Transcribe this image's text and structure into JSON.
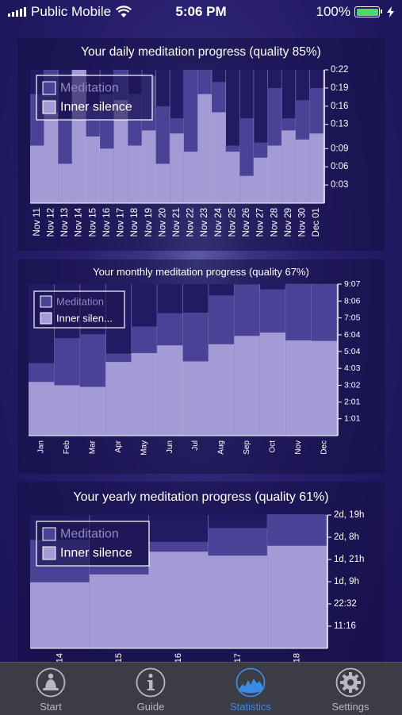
{
  "status_bar": {
    "carrier": "Public Mobile",
    "time": "5:06 PM",
    "battery": "100%",
    "battery_level": 1.0,
    "icons": [
      "signal-icon",
      "wifi-icon",
      "battery-icon",
      "charging-bolt-icon"
    ]
  },
  "colors": {
    "meditation": "#4a4296",
    "inner_silence": "#a39ad6",
    "panel": "#1c1650",
    "tab_active": "#3b8ae6",
    "tab_inactive": "#b8b8c0"
  },
  "chart_data": [
    {
      "type": "bar",
      "title": "Your daily meditation progress (quality 85%)",
      "legend": [
        "Meditation",
        "Inner silence"
      ],
      "legend_position": "top-left",
      "y_axis_side": "right",
      "categories": [
        "Nov 11",
        "Nov 12",
        "Nov 13",
        "Nov 14",
        "Nov 15",
        "Nov 16",
        "Nov 17",
        "Nov 18",
        "Nov 19",
        "Nov 20",
        "Nov 21",
        "Nov 22",
        "Nov 23",
        "Nov 24",
        "Nov 25",
        "Nov 26",
        "Nov 27",
        "Nov 28",
        "Nov 29",
        "Nov 30",
        "Dec 01"
      ],
      "y_ticks": [
        "0:03",
        "0:06",
        "0:09",
        "0:13",
        "0:16",
        "0:19",
        "0:22"
      ],
      "y_tick_values": [
        3,
        6,
        9,
        13,
        16,
        19,
        22
      ],
      "ylim": [
        0,
        22
      ],
      "y_unit": "minutes",
      "series": [
        {
          "name": "Meditation",
          "values": [
            18,
            22,
            14,
            20,
            16,
            18,
            22,
            18,
            21,
            16,
            14,
            22,
            22,
            20,
            9.5,
            14,
            10,
            19,
            14,
            17,
            19
          ]
        },
        {
          "name": "Inner silence",
          "values": [
            9.5,
            15,
            6.5,
            22,
            11,
            9,
            17,
            9.5,
            12,
            6.5,
            11.5,
            8.5,
            18,
            15,
            8.5,
            4.5,
            7.5,
            9.5,
            12,
            10.5,
            11.5
          ]
        }
      ]
    },
    {
      "type": "bar",
      "title": "Your monthly meditation progress (quality 67%)",
      "legend": [
        "Meditation",
        "Inner silen..."
      ],
      "legend_position": "top-left",
      "y_axis_side": "right",
      "categories": [
        "Jan",
        "Feb",
        "Mar",
        "Apr",
        "May",
        "Jun",
        "Jul",
        "Aug",
        "Sep",
        "Oct",
        "Nov",
        "Dec"
      ],
      "y_ticks": [
        "1:01",
        "2:01",
        "3:02",
        "4:03",
        "5:04",
        "6:04",
        "7:05",
        "8:06",
        "9:07"
      ],
      "y_tick_values": [
        61,
        121,
        182,
        243,
        304,
        364,
        425,
        486,
        547
      ],
      "ylim": [
        0,
        547
      ],
      "y_unit": "minutes",
      "series": [
        {
          "name": "Meditation",
          "values": [
            262,
            352,
            366,
            296,
            394,
            442,
            444,
            506,
            546,
            528,
            548,
            548
          ]
        },
        {
          "name": "Inner silence",
          "values": [
            194,
            182,
            176,
            266,
            298,
            326,
            268,
            330,
            360,
            372,
            344,
            342
          ]
        }
      ]
    },
    {
      "type": "bar",
      "title": "Your yearly meditation progress (quality 61%)",
      "legend": [
        "Meditation",
        "Inner silence"
      ],
      "legend_position": "top-left",
      "y_axis_side": "right",
      "categories": [
        "14",
        "15",
        "16",
        "17",
        "18"
      ],
      "y_ticks": [
        "11:16",
        "22:32",
        "1d, 9h",
        "1d, 21h",
        "2d, 8h",
        "2d, 19h"
      ],
      "y_tick_values": [
        11.27,
        22.53,
        33.8,
        45.07,
        56.33,
        67.6
      ],
      "ylim": [
        0,
        67.6
      ],
      "y_unit": "hours",
      "series": [
        {
          "name": "Meditation",
          "values": [
            55,
            42,
            54,
            61,
            68
          ]
        },
        {
          "name": "Inner silence",
          "values": [
            33.5,
            37.5,
            49,
            47,
            52
          ]
        }
      ]
    }
  ],
  "tab_bar": {
    "tabs": [
      {
        "label": "Start",
        "icon": "buddha-icon",
        "active": false
      },
      {
        "label": "Guide",
        "icon": "info-icon",
        "active": false
      },
      {
        "label": "Statistics",
        "icon": "statistics-chart-icon",
        "active": true
      },
      {
        "label": "Settings",
        "icon": "gear-icon",
        "active": false
      }
    ]
  }
}
